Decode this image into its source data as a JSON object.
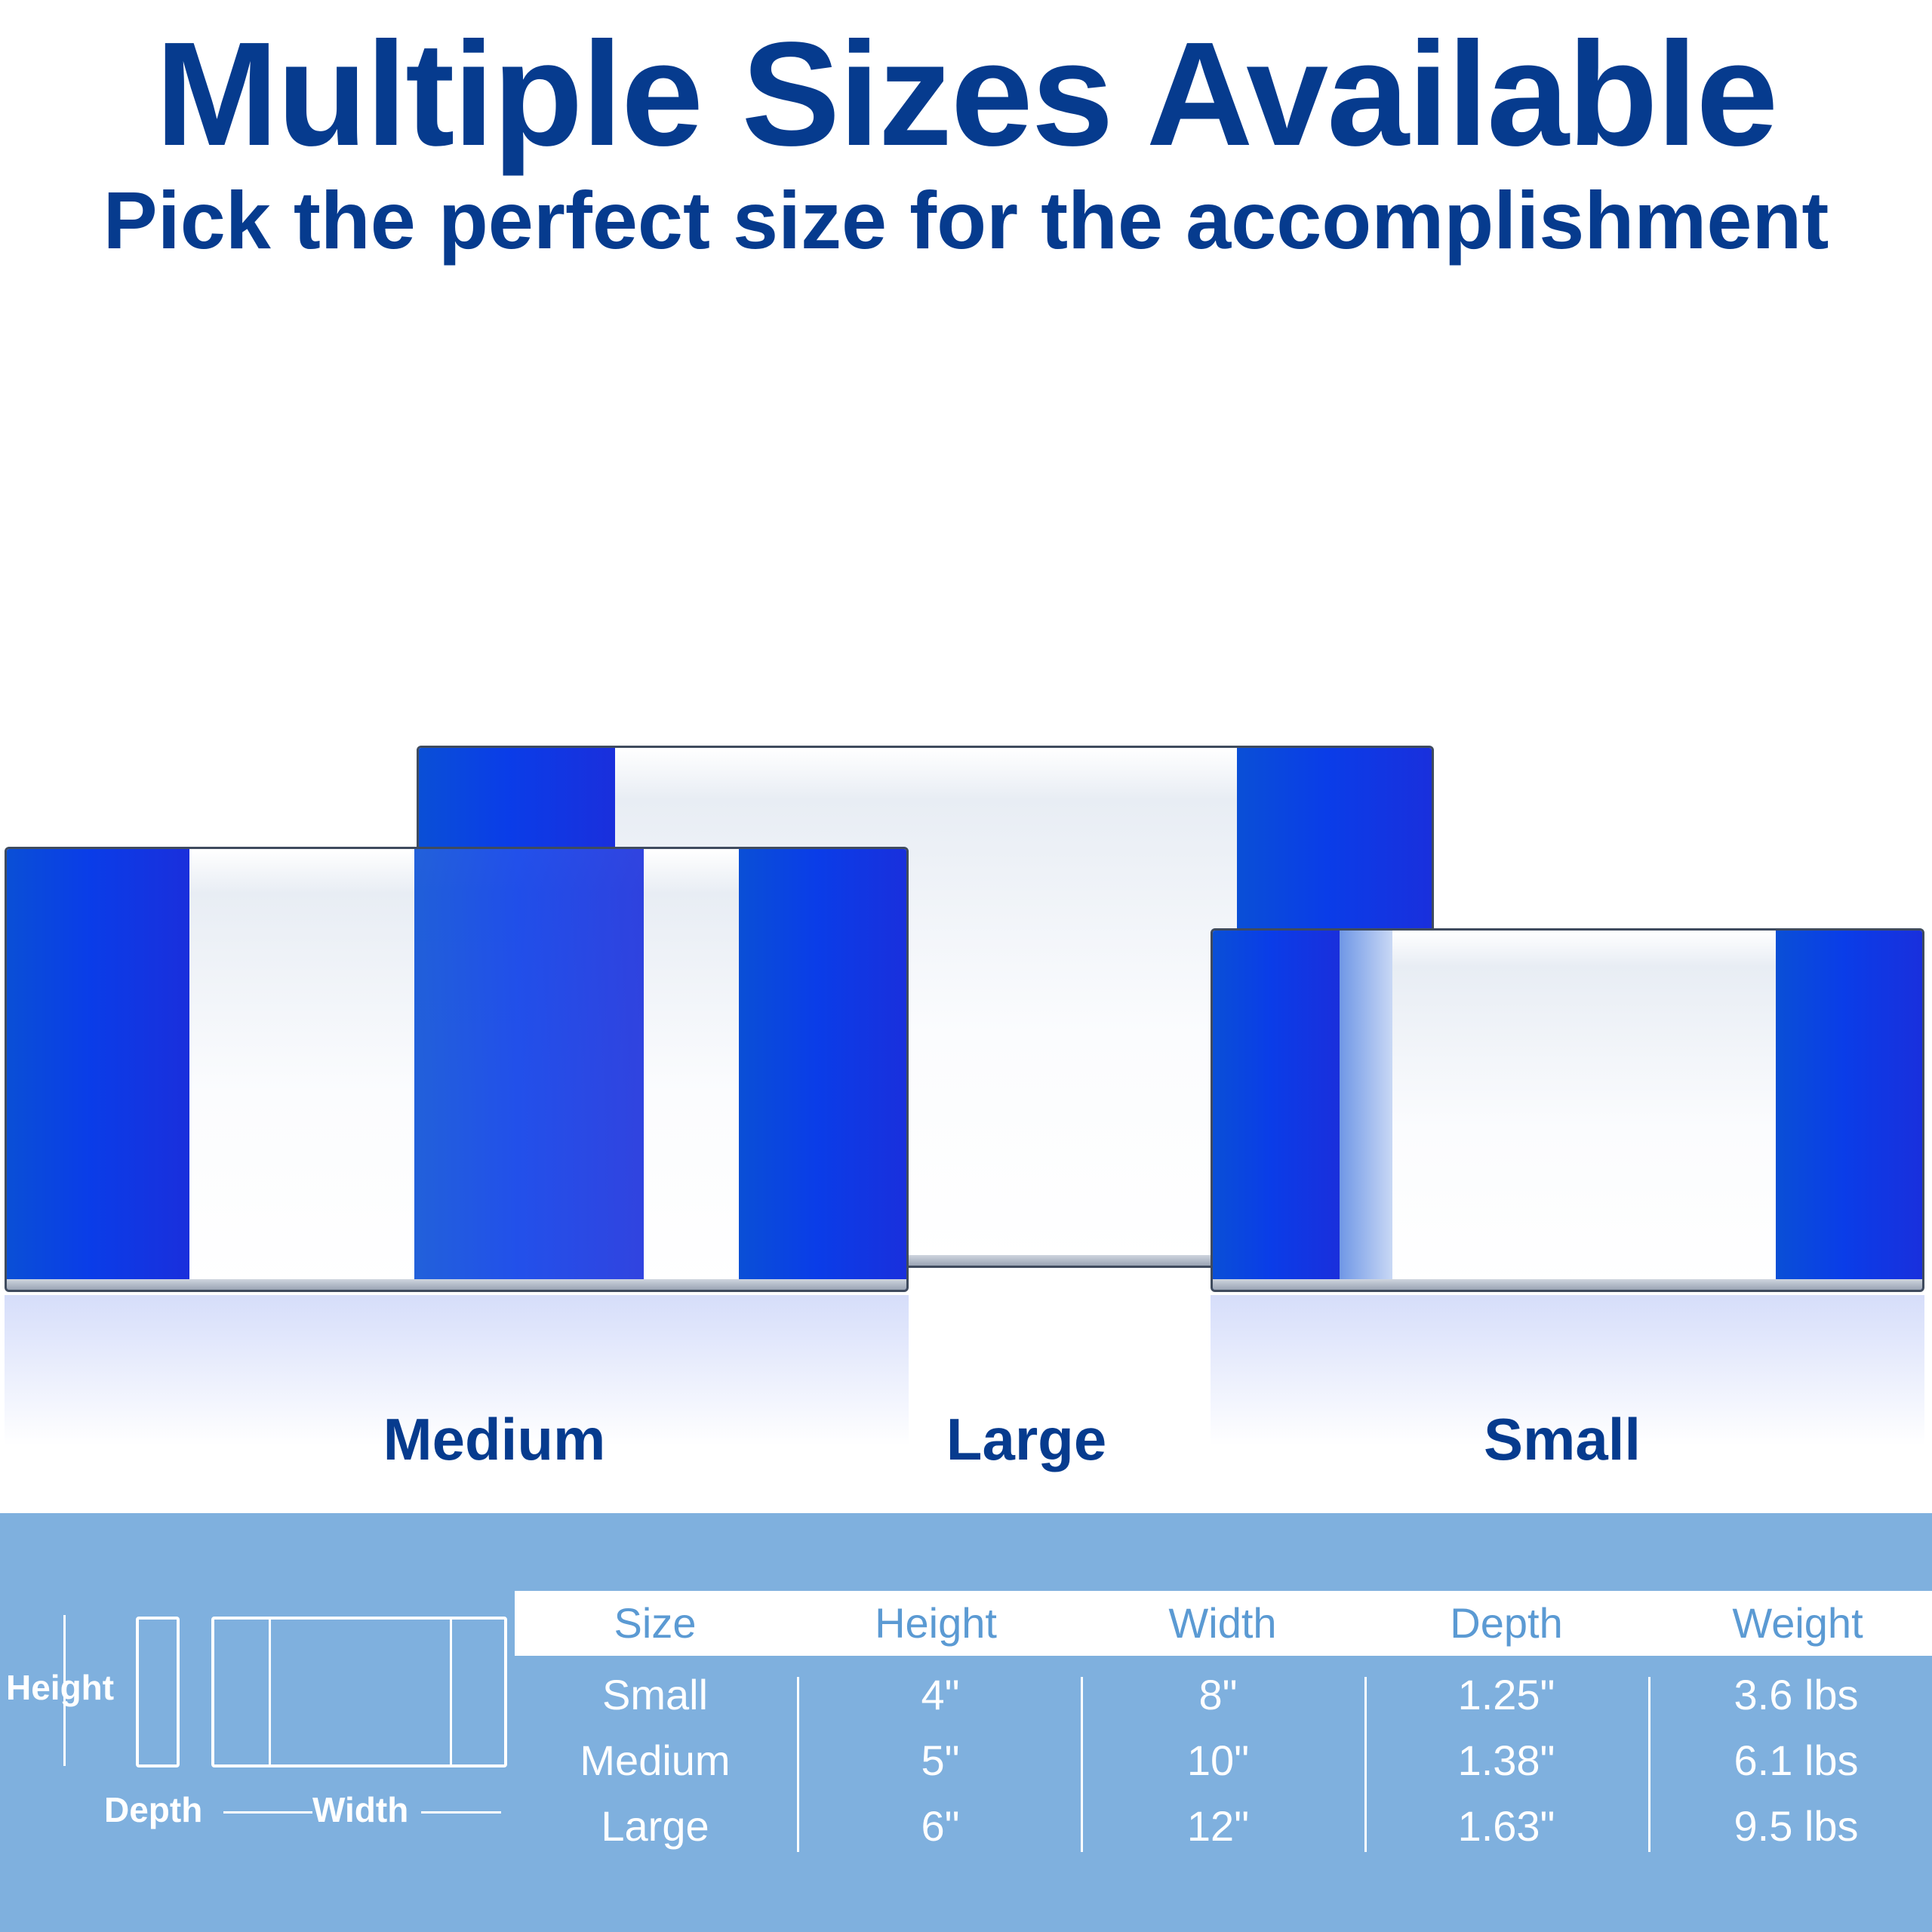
{
  "header": {
    "title": "Multiple Sizes Available",
    "subtitle": "Pick the perfect size for the accomplishment"
  },
  "products": {
    "medium_label": "Medium",
    "large_label": "Large",
    "small_label": "Small"
  },
  "colors": {
    "brand_navy": "#063b8e",
    "crystal_blue": "#0a3de8",
    "panel_blue": "#7fb0de",
    "header_text_blue": "#5b9ad3"
  },
  "diagram": {
    "height_label": "Height",
    "depth_label": "Depth",
    "width_label": "Width"
  },
  "spec_table": {
    "headers": [
      "Size",
      "Height",
      "Width",
      "Depth",
      "Weight"
    ],
    "rows": [
      [
        "Small",
        "4\"",
        "8\"",
        "1.25\"",
        "3.6 lbs"
      ],
      [
        "Medium",
        "5\"",
        "10\"",
        "1.38\"",
        "6.1 lbs"
      ],
      [
        "Large",
        "6\"",
        "12\"",
        "1.63\"",
        "9.5 lbs"
      ]
    ]
  }
}
